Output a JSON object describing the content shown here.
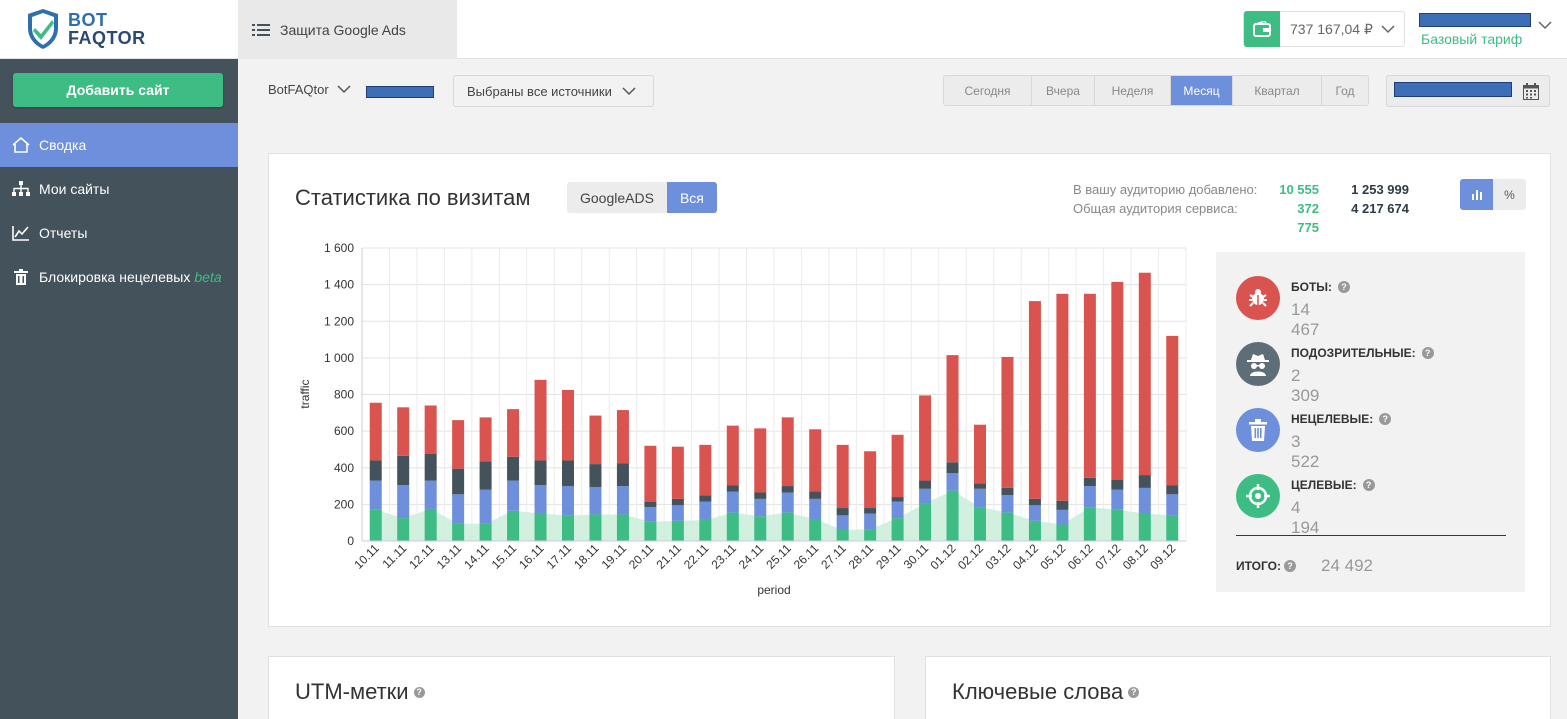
{
  "brand": {
    "line1": "BOT",
    "line2": "FAQTOR"
  },
  "project_tab": {
    "label": "Защита Google Ads",
    "icon": "list-icon"
  },
  "wallet": {
    "amount": "737 167,04 ₽",
    "icon": "wallet-icon"
  },
  "account": {
    "tariff": "Базовый тариф"
  },
  "sidebar": {
    "add_button": "Добавить сайт",
    "items": [
      {
        "label": "Сводка",
        "icon": "home-icon",
        "active": true
      },
      {
        "label": "Мои сайты",
        "icon": "sitemap-icon",
        "active": false
      },
      {
        "label": "Отчеты",
        "icon": "line-chart-icon",
        "active": false
      },
      {
        "label": "Блокировка нецелевых",
        "beta": "beta",
        "icon": "trash-icon",
        "active": false
      }
    ]
  },
  "filters": {
    "site": "BotFAQtor",
    "sources": "Выбраны все источники",
    "periods": [
      {
        "label": "Сегодня",
        "active": false
      },
      {
        "label": "Вчера",
        "active": false
      },
      {
        "label": "Неделя",
        "active": false
      },
      {
        "label": "Месяц",
        "active": true
      },
      {
        "label": "Квартал",
        "active": false
      },
      {
        "label": "Год",
        "active": false
      }
    ]
  },
  "stats_card": {
    "title": "Статистика по визитам",
    "toggle": [
      {
        "label": "GoogleADS",
        "active": false
      },
      {
        "label": "Вся",
        "active": true
      }
    ],
    "audience": {
      "added_label": "В вашу аудиторию добавлено:",
      "added_green": "10 555",
      "added_total": "1 253 999",
      "service_label": "Общая аудитория сервиса:",
      "service_green": "372 775",
      "service_total": "4 217 674"
    },
    "view_toggle": {
      "percent": "%"
    }
  },
  "summary": {
    "items": [
      {
        "label": "БОТЫ:",
        "value": "14 467",
        "icon": "bug-icon",
        "color": "#d9534f"
      },
      {
        "label": "ПОДОЗРИТЕЛЬНЫЕ:",
        "value": "2 309",
        "icon": "spy-icon",
        "color": "#5e6e78"
      },
      {
        "label": "НЕЦЕЛЕВЫЕ:",
        "value": "3 522",
        "icon": "trash-icon",
        "color": "#6d8fdc"
      },
      {
        "label": "ЦЕЛЕВЫЕ:",
        "value": "4 194",
        "icon": "target-icon",
        "color": "#3dbd84"
      }
    ],
    "total_label": "ИТОГО:",
    "total_value": "24 492"
  },
  "lower_cards": {
    "utm_title": "UTM-метки",
    "keywords_title": "Ключевые слова"
  },
  "chart_data": {
    "type": "bar",
    "stacked": true,
    "xlabel": "period",
    "ylabel": "traffic",
    "ylim": [
      0,
      1600
    ],
    "yticks": [
      0,
      200,
      400,
      600,
      800,
      1000,
      1200,
      1400,
      1600
    ],
    "ytick_labels": [
      "0",
      "200",
      "400",
      "600",
      "800",
      "1 000",
      "1 200",
      "1 400",
      "1 600"
    ],
    "grid": true,
    "categories": [
      "10.11",
      "11.11",
      "12.11",
      "13.11",
      "14.11",
      "15.11",
      "16.11",
      "17.11",
      "18.11",
      "19.11",
      "20.11",
      "21.11",
      "22.11",
      "23.11",
      "24.11",
      "25.11",
      "26.11",
      "27.11",
      "28.11",
      "29.11",
      "30.11",
      "01.12",
      "02.12",
      "03.12",
      "04.12",
      "05.12",
      "06.12",
      "07.12",
      "08.12",
      "09.12"
    ],
    "series": [
      {
        "color": "#3dbd84",
        "values": [
          170,
          125,
          175,
          95,
          95,
          165,
          150,
          140,
          145,
          145,
          105,
          110,
          115,
          155,
          135,
          155,
          120,
          60,
          65,
          125,
          205,
          275,
          185,
          155,
          110,
          90,
          185,
          170,
          150,
          140
        ]
      },
      {
        "color": "#6d8fdc",
        "values": [
          160,
          180,
          155,
          160,
          185,
          165,
          155,
          160,
          150,
          155,
          80,
          85,
          100,
          115,
          95,
          110,
          110,
          80,
          85,
          90,
          80,
          95,
          100,
          95,
          85,
          80,
          115,
          110,
          140,
          115
        ]
      },
      {
        "color": "#44525b",
        "values": [
          110,
          160,
          145,
          140,
          155,
          130,
          135,
          140,
          125,
          125,
          30,
          35,
          35,
          35,
          35,
          35,
          40,
          40,
          30,
          25,
          45,
          60,
          30,
          40,
          35,
          50,
          45,
          55,
          70,
          50
        ]
      },
      {
        "color": "#d9534f",
        "values": [
          315,
          265,
          265,
          265,
          240,
          260,
          440,
          385,
          265,
          290,
          305,
          285,
          275,
          325,
          350,
          375,
          340,
          345,
          310,
          340,
          465,
          585,
          320,
          715,
          1080,
          1130,
          1005,
          1080,
          1105,
          815
        ]
      }
    ],
    "area_series": {
      "color": "#cdeedd",
      "values": [
        170,
        125,
        175,
        95,
        95,
        165,
        150,
        140,
        145,
        145,
        105,
        110,
        115,
        155,
        135,
        155,
        120,
        60,
        65,
        125,
        205,
        275,
        185,
        155,
        110,
        90,
        185,
        170,
        150,
        140
      ]
    }
  }
}
